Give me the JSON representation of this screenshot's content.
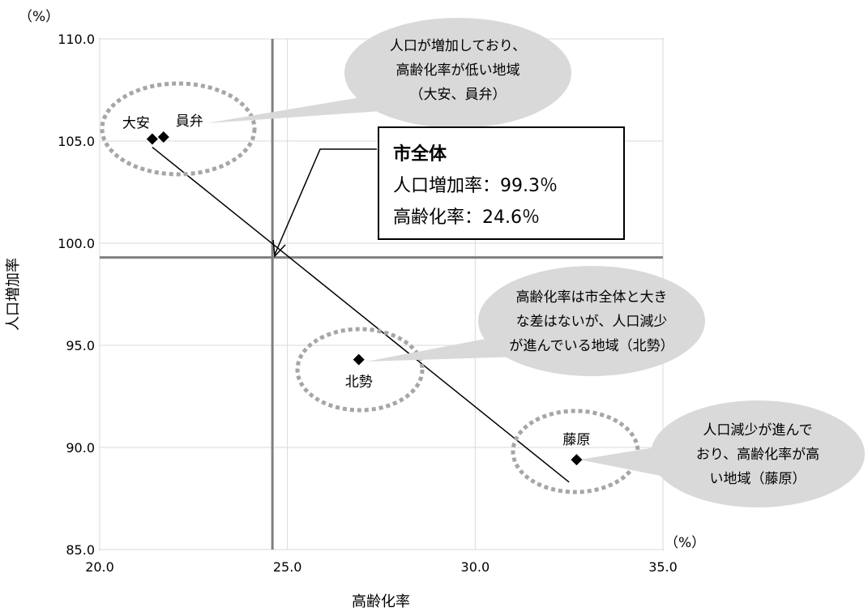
{
  "chart_data": {
    "type": "scatter",
    "title": "",
    "xlabel": "高齢化率",
    "ylabel": "人口増加率",
    "x_unit": "（%）",
    "y_unit": "（%）",
    "xlim": [
      20.0,
      35.0
    ],
    "ylim": [
      85.0,
      110.0
    ],
    "x_ticks": [
      "20.0",
      "25.0",
      "30.0",
      "35.0"
    ],
    "y_ticks": [
      "85.0",
      "90.0",
      "95.0",
      "100.0",
      "105.0",
      "110.0"
    ],
    "grid": true,
    "points": [
      {
        "label": "大安",
        "x": 21.4,
        "y": 105.1
      },
      {
        "label": "員弁",
        "x": 21.7,
        "y": 105.2
      },
      {
        "label": "北勢",
        "x": 26.9,
        "y": 94.3
      },
      {
        "label": "藤原",
        "x": 32.7,
        "y": 89.4
      }
    ],
    "trendline": {
      "from": {
        "x": 21.4,
        "y": 104.7
      },
      "to": {
        "x": 32.5,
        "y": 88.3
      }
    },
    "reference_lines": {
      "x": 24.6,
      "y": 99.3
    },
    "summary_box": {
      "title": "市全体",
      "lines": [
        "人口増加率：99.3％",
        "高齢化率：24.6％"
      ]
    },
    "callouts": [
      {
        "group": "大安・員弁",
        "lines": [
          "人口が増加しており、",
          "高齢化率が低い地域",
          "（大安、員弁）"
        ]
      },
      {
        "group": "北勢",
        "lines": [
          "高齢化率は市全体と大き",
          "な差はないが、人口減少",
          "が進んでいる地域（北勢）"
        ]
      },
      {
        "group": "藤原",
        "lines": [
          "人口減少が進んで",
          "おり、高齢化率が高",
          "い地域（藤原）"
        ]
      }
    ]
  }
}
